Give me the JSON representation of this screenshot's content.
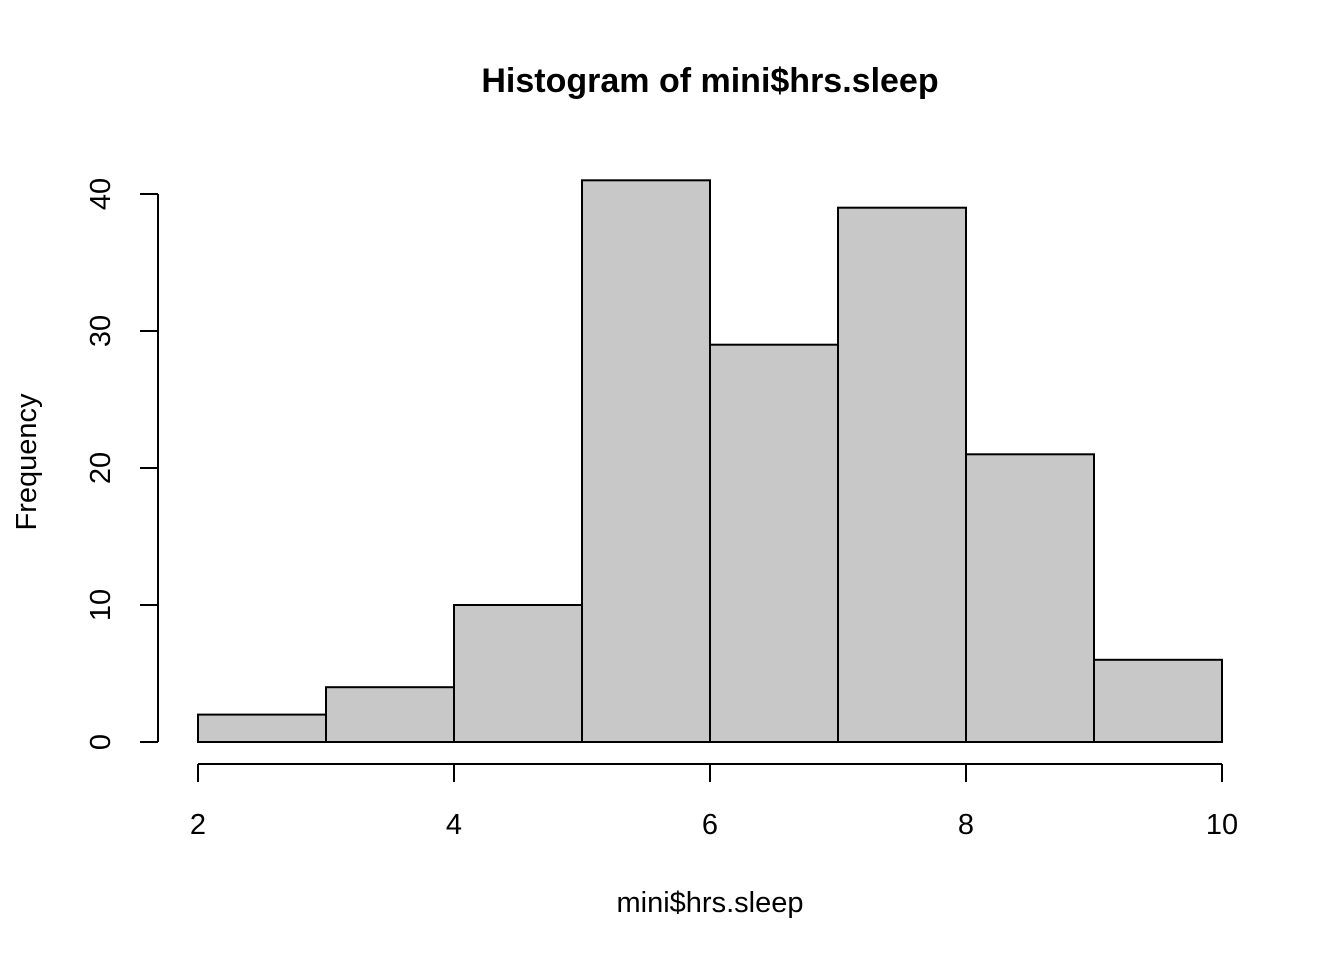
{
  "chart_data": {
    "type": "bar",
    "subtype": "histogram",
    "title": "Histogram of mini$hrs.sleep",
    "xlabel": "mini$hrs.sleep",
    "ylabel": "Frequency",
    "bins": [
      {
        "start": 2,
        "end": 3,
        "count": 2
      },
      {
        "start": 3,
        "end": 4,
        "count": 4
      },
      {
        "start": 4,
        "end": 5,
        "count": 10
      },
      {
        "start": 5,
        "end": 6,
        "count": 41
      },
      {
        "start": 6,
        "end": 7,
        "count": 29
      },
      {
        "start": 7,
        "end": 8,
        "count": 39
      },
      {
        "start": 8,
        "end": 9,
        "count": 21
      },
      {
        "start": 9,
        "end": 10,
        "count": 6
      }
    ],
    "xlim": [
      2,
      10
    ],
    "ylim": [
      0,
      40
    ],
    "xticks": [
      "2",
      "4",
      "6",
      "8",
      "10"
    ],
    "yticks": [
      "0",
      "10",
      "20",
      "30",
      "40"
    ],
    "bar_color": "#c8c8c8",
    "grid": false,
    "legend": "none"
  }
}
